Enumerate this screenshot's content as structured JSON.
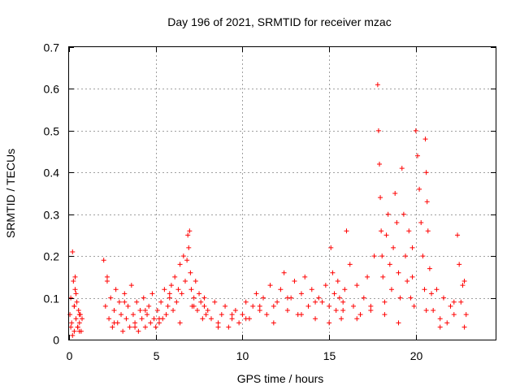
{
  "chart_data": {
    "type": "scatter",
    "title": "Day 196 of 2021, SRMTID for receiver mzac",
    "xlabel": "GPS time / hours",
    "ylabel": "SRMTID / TECUs",
    "xlim": [
      0,
      24.6
    ],
    "ylim": [
      0,
      0.7
    ],
    "xticks": [
      0,
      5,
      10,
      15,
      20
    ],
    "xtick_labels": [
      "0",
      "5",
      "10",
      "15",
      "20"
    ],
    "yticks": [
      0,
      0.1,
      0.2,
      0.3,
      0.4,
      0.5,
      0.6,
      0.7
    ],
    "ytick_labels": [
      "0",
      "0.1",
      "0.2",
      "0.3",
      "0.4",
      "0.5",
      "0.6",
      "0.7"
    ],
    "grid": true,
    "marker": "+",
    "color": "#ff0000",
    "series": [
      {
        "name": "SRMTID",
        "x": [
          0.05,
          0.1,
          0.15,
          0.2,
          0.25,
          0.3,
          0.3,
          0.35,
          0.4,
          0.45,
          0.5,
          0.55,
          0.6,
          0.65,
          0.7,
          0.75,
          0.2,
          0.35,
          0.5,
          0.4,
          0.6,
          2.0,
          2.1,
          2.2,
          2.3,
          2.4,
          2.5,
          2.6,
          2.7,
          2.8,
          2.9,
          3.0,
          3.1,
          3.2,
          3.3,
          3.4,
          3.5,
          3.6,
          3.7,
          3.8,
          3.9,
          4.0,
          4.1,
          4.2,
          4.3,
          4.4,
          4.5,
          4.6,
          4.7,
          4.8,
          4.9,
          5.0,
          5.1,
          5.2,
          5.3,
          5.4,
          5.5,
          5.6,
          5.7,
          5.8,
          5.9,
          6.0,
          6.1,
          6.2,
          6.3,
          6.4,
          6.5,
          6.6,
          6.7,
          6.8,
          6.85,
          6.9,
          6.95,
          7.0,
          7.05,
          7.1,
          7.2,
          7.3,
          7.4,
          7.5,
          7.6,
          7.7,
          7.8,
          7.9,
          8.0,
          8.2,
          8.4,
          8.6,
          8.8,
          9.0,
          9.2,
          9.4,
          9.6,
          9.8,
          10.0,
          10.2,
          10.4,
          10.6,
          10.8,
          11.0,
          11.2,
          11.4,
          11.6,
          11.8,
          12.0,
          12.2,
          12.4,
          12.6,
          12.8,
          13.0,
          13.2,
          13.4,
          13.6,
          13.8,
          14.0,
          14.2,
          14.4,
          14.6,
          14.8,
          15.0,
          15.1,
          15.2,
          15.3,
          15.4,
          15.5,
          15.6,
          15.7,
          15.8,
          15.9,
          16.0,
          16.2,
          16.4,
          16.6,
          16.8,
          17.0,
          17.2,
          17.4,
          17.6,
          17.8,
          17.85,
          17.9,
          17.95,
          18.0,
          18.05,
          18.1,
          18.2,
          18.3,
          18.4,
          18.5,
          18.6,
          18.7,
          18.8,
          18.9,
          19.0,
          19.1,
          19.2,
          19.3,
          19.4,
          19.5,
          19.6,
          19.7,
          19.8,
          19.9,
          20.0,
          20.1,
          20.2,
          20.3,
          20.4,
          20.5,
          20.55,
          20.6,
          20.65,
          20.7,
          20.8,
          20.9,
          21.0,
          21.2,
          21.4,
          21.6,
          21.8,
          22.0,
          22.2,
          22.4,
          22.5,
          22.6,
          22.7,
          22.8,
          22.9,
          0.1,
          0.3,
          0.6,
          2.2,
          2.6,
          3.2,
          3.8,
          4.4,
          5.2,
          5.8,
          6.4,
          7.2,
          7.8,
          8.6,
          9.4,
          10.2,
          11.0,
          11.8,
          12.6,
          13.4,
          14.2,
          15.0,
          15.8,
          16.6,
          17.4,
          18.2,
          19.0,
          19.8,
          20.6,
          21.4,
          22.2,
          22.8
        ],
        "y": [
          0.06,
          0.1,
          0.04,
          0.21,
          0.14,
          0.08,
          0.02,
          0.12,
          0.05,
          0.09,
          0.03,
          0.07,
          0.04,
          0.06,
          0.02,
          0.05,
          0.01,
          0.15,
          0.03,
          0.11,
          0.06,
          0.19,
          0.08,
          0.14,
          0.05,
          0.1,
          0.03,
          0.07,
          0.12,
          0.04,
          0.09,
          0.06,
          0.02,
          0.11,
          0.05,
          0.08,
          0.03,
          0.13,
          0.06,
          0.04,
          0.09,
          0.02,
          0.07,
          0.05,
          0.1,
          0.03,
          0.06,
          0.08,
          0.04,
          0.11,
          0.05,
          0.03,
          0.07,
          0.04,
          0.09,
          0.05,
          0.12,
          0.06,
          0.08,
          0.1,
          0.13,
          0.07,
          0.15,
          0.09,
          0.12,
          0.18,
          0.11,
          0.2,
          0.14,
          0.19,
          0.25,
          0.22,
          0.26,
          0.16,
          0.12,
          0.08,
          0.1,
          0.14,
          0.07,
          0.11,
          0.09,
          0.05,
          0.08,
          0.06,
          0.07,
          0.05,
          0.09,
          0.04,
          0.06,
          0.08,
          0.03,
          0.05,
          0.07,
          0.04,
          0.06,
          0.09,
          0.05,
          0.08,
          0.11,
          0.07,
          0.1,
          0.06,
          0.13,
          0.08,
          0.09,
          0.12,
          0.16,
          0.07,
          0.1,
          0.14,
          0.06,
          0.11,
          0.15,
          0.08,
          0.12,
          0.05,
          0.1,
          0.09,
          0.13,
          0.08,
          0.22,
          0.16,
          0.11,
          0.07,
          0.14,
          0.1,
          0.05,
          0.09,
          0.12,
          0.26,
          0.18,
          0.08,
          0.13,
          0.06,
          0.1,
          0.15,
          0.07,
          0.2,
          0.61,
          0.5,
          0.42,
          0.34,
          0.26,
          0.2,
          0.15,
          0.09,
          0.25,
          0.3,
          0.18,
          0.12,
          0.22,
          0.35,
          0.28,
          0.16,
          0.1,
          0.41,
          0.3,
          0.2,
          0.14,
          0.26,
          0.1,
          0.15,
          0.08,
          0.5,
          0.44,
          0.36,
          0.28,
          0.2,
          0.12,
          0.48,
          0.4,
          0.33,
          0.26,
          0.17,
          0.11,
          0.07,
          0.12,
          0.05,
          0.1,
          0.04,
          0.08,
          0.06,
          0.25,
          0.18,
          0.09,
          0.13,
          0.03,
          0.06,
          0.03,
          0.08,
          0.02,
          0.15,
          0.04,
          0.09,
          0.03,
          0.07,
          0.05,
          0.11,
          0.04,
          0.08,
          0.1,
          0.03,
          0.06,
          0.05,
          0.08,
          0.04,
          0.1,
          0.06,
          0.09,
          0.04,
          0.07,
          0.05,
          0.08,
          0.06,
          0.04,
          0.22,
          0.07,
          0.03,
          0.09,
          0.14
        ]
      }
    ]
  }
}
